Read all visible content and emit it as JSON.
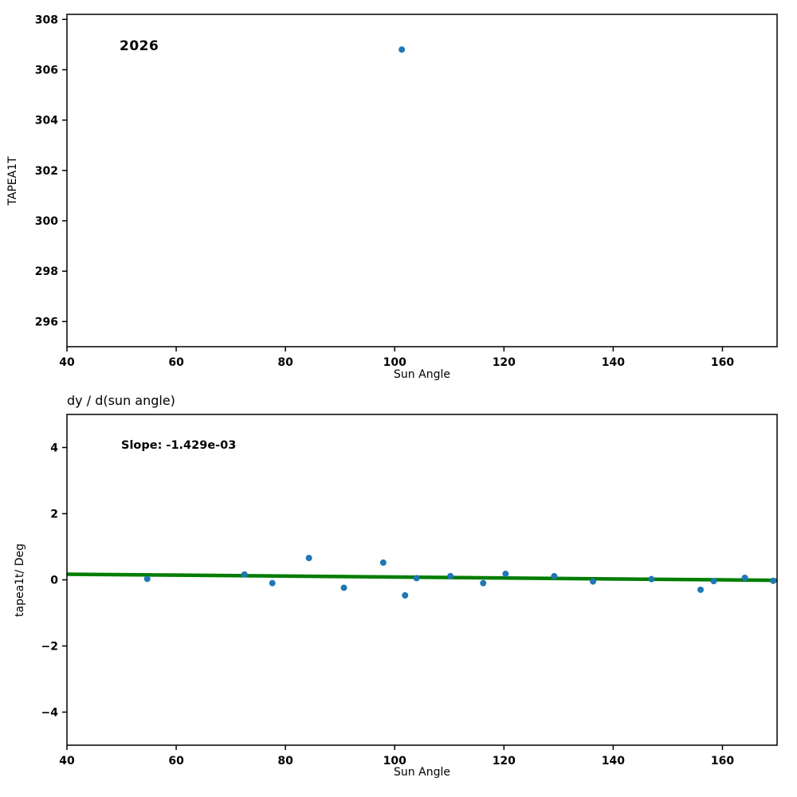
{
  "background": "#ffffff",
  "chart_data": [
    {
      "type": "scatter",
      "annotation": "2026",
      "xlabel": "Sun Angle",
      "ylabel": "TAPEA1T",
      "xlim": [
        40,
        170
      ],
      "ylim": [
        295.0,
        308.2
      ],
      "xticks": [
        40,
        60,
        80,
        100,
        120,
        140,
        160
      ],
      "yticks": [
        296,
        298,
        300,
        302,
        304,
        306,
        308
      ],
      "grid": false,
      "legend": "none",
      "point_color": "#1f77b4",
      "points": [
        [
          101.3,
          306.8
        ]
      ]
    },
    {
      "type": "scatter",
      "title": "dy / d(sun angle)",
      "annotation": "Slope: -1.429e-03",
      "xlabel": "Sun Angle",
      "ylabel": "tapea1t/ Deg",
      "xlim": [
        40,
        170
      ],
      "ylim": [
        -5,
        5
      ],
      "xticks": [
        40,
        60,
        80,
        100,
        120,
        140,
        160
      ],
      "yticks": [
        -4,
        -2,
        0,
        2,
        4
      ],
      "grid": false,
      "legend": "none",
      "point_color": "#1f77b4",
      "points": [
        [
          54.7,
          0.03
        ],
        [
          72.5,
          0.16
        ],
        [
          77.6,
          -0.1
        ],
        [
          84.3,
          0.66
        ],
        [
          90.7,
          -0.24
        ],
        [
          97.9,
          0.52
        ],
        [
          101.9,
          -0.47
        ],
        [
          104.0,
          0.05
        ],
        [
          110.2,
          0.11
        ],
        [
          116.2,
          -0.1
        ],
        [
          120.3,
          0.18
        ],
        [
          129.2,
          0.11
        ],
        [
          136.3,
          -0.05
        ],
        [
          147.0,
          0.02
        ],
        [
          156.0,
          -0.3
        ],
        [
          158.4,
          -0.04
        ],
        [
          164.1,
          0.06
        ],
        [
          169.3,
          -0.03
        ]
      ],
      "trend": {
        "x": [
          40,
          170
        ],
        "y": [
          0.17,
          -0.016
        ],
        "slope": -0.001429,
        "color": "#007d00"
      }
    }
  ]
}
